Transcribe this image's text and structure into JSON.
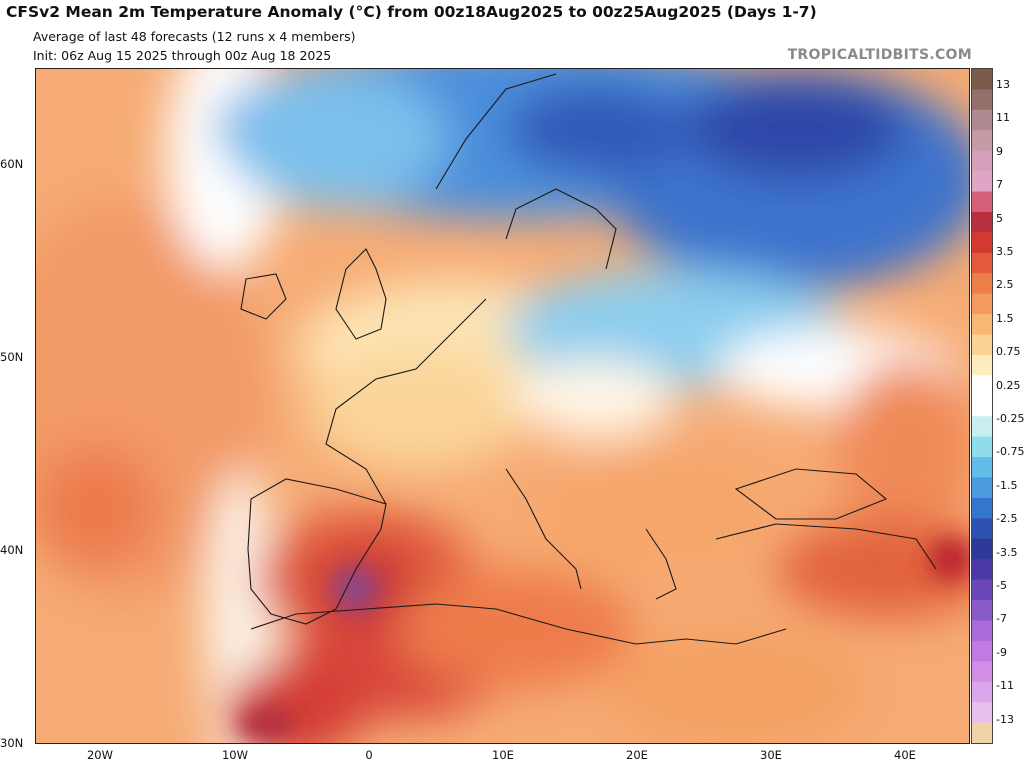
{
  "header": {
    "title": "CFSv2 Mean 2m Temperature Anomaly (°C) from 00z18Aug2025 to 00z25Aug2025 (Days 1-7)",
    "subtitle1": "Average of last 48 forecasts (12 runs x 4 members)",
    "subtitle2": "Init: 06z Aug 15 2025 through 00z Aug 18 2025",
    "credit": "TROPICALTIDBITS.COM"
  },
  "axes": {
    "lat_labels": [
      "60N",
      "50N",
      "40N",
      "30N"
    ],
    "lon_labels": [
      "20W",
      "10W",
      "0",
      "10E",
      "20E",
      "30E",
      "40E"
    ]
  },
  "colorbar": {
    "labels": [
      "13",
      "11",
      "9",
      "7",
      "5",
      "3.5",
      "2.5",
      "1.5",
      "0.75",
      "0.25",
      "-0.25",
      "-0.75",
      "-1.5",
      "-2.5",
      "-3.5",
      "-5",
      "-7",
      "-9",
      "-11",
      "-13"
    ],
    "colors": [
      "#7a5a4a",
      "#94706a",
      "#b08890",
      "#c79aa8",
      "#d6a0b8",
      "#e0a5c4",
      "#d4607a",
      "#b83040",
      "#d23a30",
      "#e25a3a",
      "#ee7e48",
      "#f49a5c",
      "#f8b874",
      "#fbd394",
      "#fdecc0",
      "#ffffff",
      "#ffffff",
      "#c8eef2",
      "#8edcec",
      "#62bde8",
      "#4a9ae0",
      "#3476cc",
      "#2e52b0",
      "#2e3a98",
      "#4a3aa8",
      "#6a48b8",
      "#8a5ac8",
      "#aa6ad8",
      "#c07ae0",
      "#d08ee6",
      "#dca6ea",
      "#e8c0ee",
      "#f0d4a8"
    ]
  }
}
